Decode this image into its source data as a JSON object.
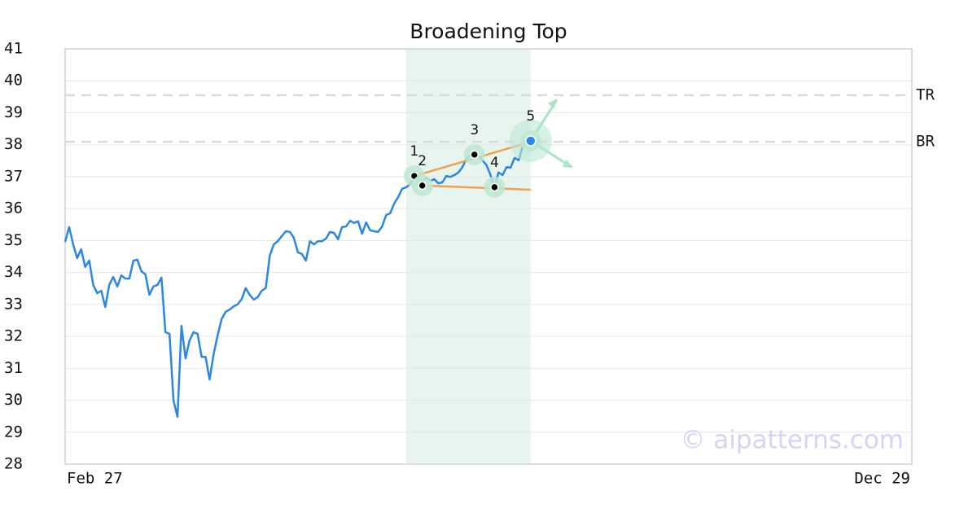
{
  "chart_data": {
    "type": "line",
    "title": "Broadening Top",
    "xlim": [
      0,
      211
    ],
    "xticks": [
      {
        "value": 0,
        "label": "Feb 27"
      },
      {
        "value": 211,
        "label": "Dec 29"
      }
    ],
    "ylim": [
      28,
      41
    ],
    "yticks": [
      28,
      29,
      30,
      31,
      32,
      33,
      34,
      35,
      36,
      37,
      38,
      39,
      40,
      41
    ],
    "grid": true,
    "series": [
      {
        "color": "#2b87e3",
        "values": [
          34.96,
          35.42,
          34.88,
          34.45,
          34.73,
          34.17,
          34.37,
          33.61,
          33.35,
          33.43,
          32.92,
          33.61,
          33.86,
          33.56,
          33.91,
          33.81,
          33.81,
          34.37,
          34.4,
          34.04,
          33.94,
          33.3,
          33.56,
          33.61,
          33.84,
          32.13,
          32.08,
          29.99,
          29.48,
          32.33,
          31.31,
          31.87,
          32.13,
          32.08,
          31.36,
          31.36,
          30.65,
          31.44,
          32.03,
          32.54,
          32.77,
          32.84,
          32.94,
          33.0,
          33.17,
          33.51,
          33.3,
          33.15,
          33.23,
          33.43,
          33.51,
          34.53,
          34.88,
          34.98,
          35.14,
          35.29,
          35.27,
          35.09,
          34.63,
          34.58,
          34.37,
          34.98,
          34.88,
          34.98,
          34.98,
          35.06,
          35.27,
          35.24,
          35.04,
          35.42,
          35.44,
          35.62,
          35.55,
          35.6,
          35.21,
          35.57,
          35.32,
          35.29,
          35.27,
          35.44,
          35.8,
          35.85,
          36.16,
          36.36,
          36.62,
          36.67,
          36.77,
          37.02,
          36.92,
          36.87,
          36.97,
          36.87,
          36.92,
          36.79,
          36.82,
          37.02,
          36.99,
          37.05,
          37.13,
          37.3,
          37.56,
          37.69,
          37.74,
          37.64,
          37.51,
          37.36,
          37.05,
          36.67,
          37.13,
          37.05,
          37.3,
          37.28,
          37.59,
          37.51,
          37.94,
          38.12,
          38.12
        ]
      }
    ],
    "highlight": [
      85,
      116
    ],
    "highlight_color": "#e8f5ef",
    "trendline_color": "#f0a050",
    "trendlines": [
      {
        "x": [
          87,
          116
        ],
        "y": [
          37.02,
          38.09
        ]
      },
      {
        "x": [
          89,
          116
        ],
        "y": [
          36.72,
          36.59
        ]
      }
    ],
    "pattern_points": [
      {
        "label": "1",
        "x": 87,
        "y": 37.02
      },
      {
        "label": "2",
        "x": 89,
        "y": 36.72
      },
      {
        "label": "3",
        "x": 102,
        "y": 37.69
      },
      {
        "label": "4",
        "x": 107,
        "y": 36.67
      },
      {
        "label": "5",
        "x": 116,
        "y": 38.12
      }
    ],
    "reference_lines": [
      {
        "label": "TR",
        "value": 39.55
      },
      {
        "label": "BR",
        "value": 38.09
      }
    ],
    "watermark": "© aipatterns.com"
  }
}
